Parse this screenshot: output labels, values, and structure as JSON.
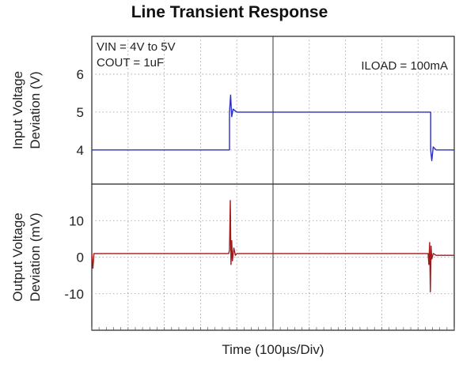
{
  "chart_data": {
    "title": "Line Transient Response",
    "xlabel": "Time (100µs/Div)",
    "x_divisions": 10,
    "panels": [
      {
        "ylabel_lines": [
          "Input Voltage",
          "Deviation (V)"
        ],
        "yticks": [
          4,
          5,
          6
        ],
        "ylim": [
          3.1,
          7.0
        ],
        "series": [
          {
            "color": "#2a2fc4",
            "type": "line",
            "x": [
              0,
              3.8,
              3.8,
              3.83,
              3.86,
              3.9,
              4.0,
              9.35,
              9.35,
              9.38,
              9.42,
              9.5,
              10
            ],
            "y": [
              4.0,
              4.0,
              5.0,
              5.45,
              4.88,
              5.08,
              5.0,
              5.0,
              4.0,
              3.72,
              4.08,
              4.0,
              4.0
            ]
          }
        ],
        "annotations": [
          {
            "text": "VIN = 4V to 5V",
            "pos": "top-left"
          },
          {
            "text": "COUT = 1uF",
            "pos": "top-left-2"
          },
          {
            "text": "ILOAD = 100mA",
            "pos": "top-right"
          }
        ]
      },
      {
        "ylabel_lines": [
          "Output Voltage",
          "Deviation (mV)"
        ],
        "yticks": [
          10,
          0,
          -10
        ],
        "ylim": [
          -20,
          20
        ],
        "series": [
          {
            "color": "#a11b1b",
            "type": "line",
            "x": [
              0,
              0.03,
              0.06,
              3.78,
              3.8,
              3.82,
              3.84,
              3.86,
              3.88,
              3.92,
              3.96,
              4.0,
              9.28,
              9.3,
              9.32,
              9.34,
              9.36,
              9.38,
              9.42,
              9.5,
              10
            ],
            "y": [
              1.0,
              -3.0,
              1.0,
              1.0,
              2.0,
              15.5,
              -2.0,
              4.5,
              -1.0,
              2.5,
              0.5,
              1.0,
              1.0,
              -2.0,
              4.0,
              -9.5,
              3.0,
              -0.5,
              1.0,
              0.5,
              0.5
            ]
          }
        ]
      }
    ]
  }
}
